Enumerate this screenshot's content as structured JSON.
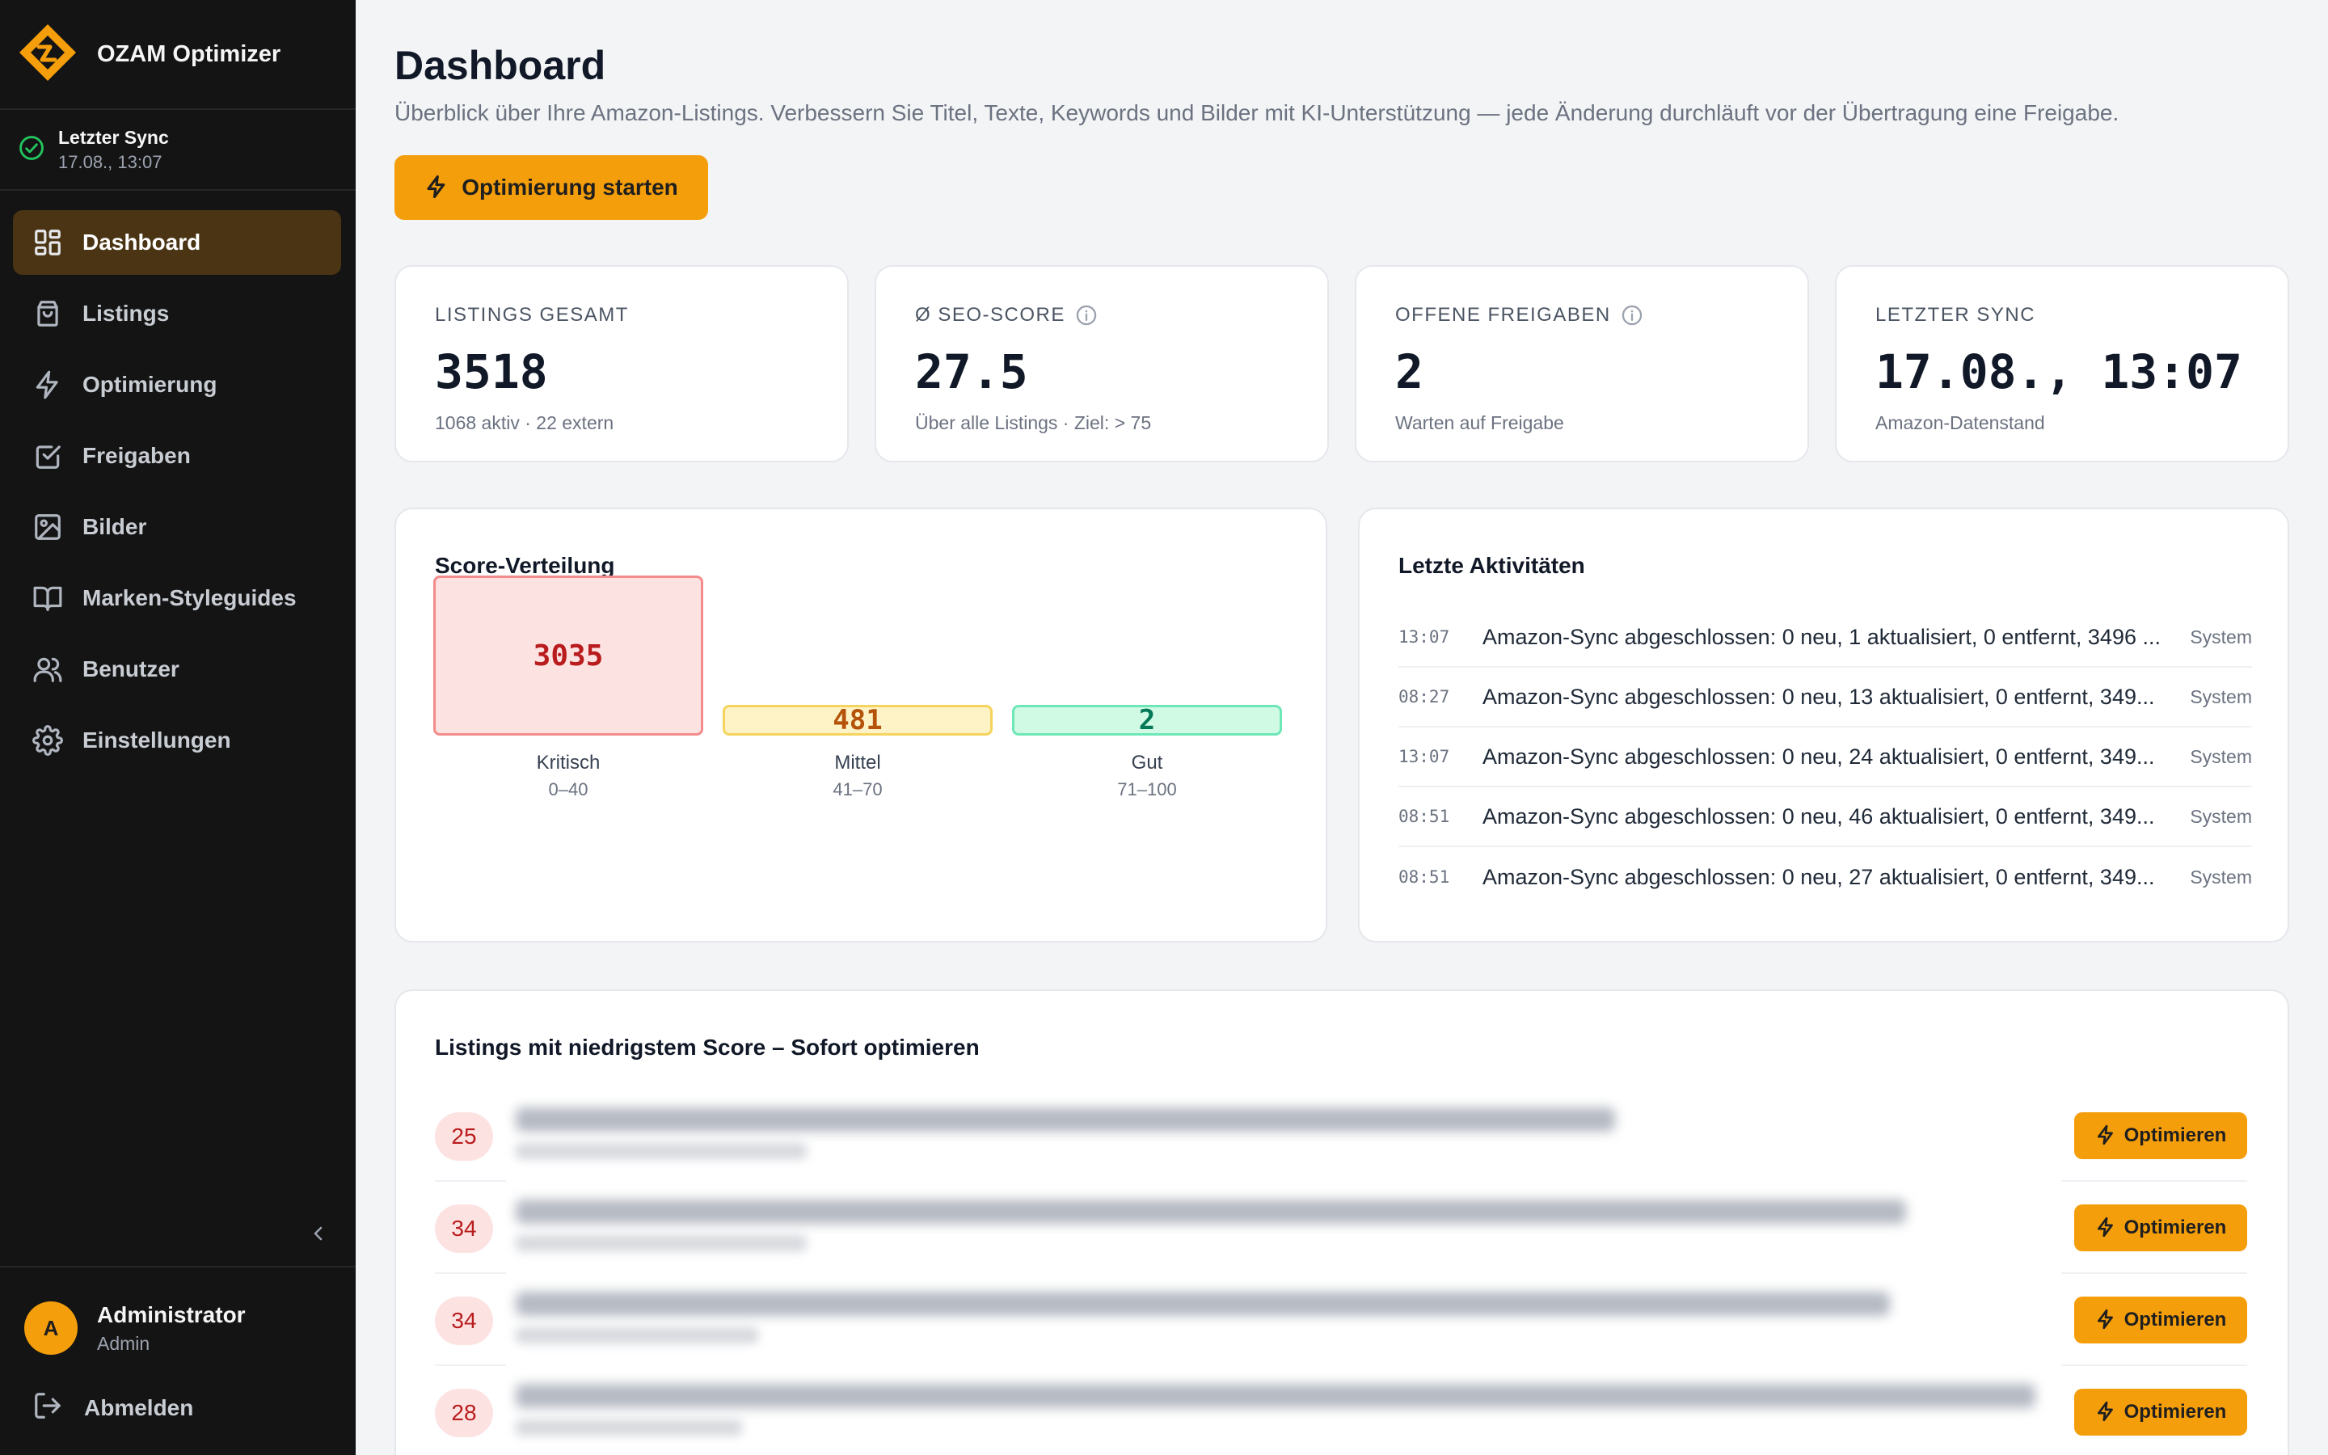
{
  "app": {
    "name": "OZAM Optimizer",
    "accent": "#f59e0b"
  },
  "sidebar": {
    "sync": {
      "title": "Letzter Sync",
      "time": "17.08., 13:07"
    },
    "items": [
      {
        "label": "Dashboard",
        "icon": "dashboard-grid-icon",
        "active": true
      },
      {
        "label": "Listings",
        "icon": "shopping-bag-icon"
      },
      {
        "label": "Optimierung",
        "icon": "lightning-icon"
      },
      {
        "label": "Freigaben",
        "icon": "checkbox-icon"
      },
      {
        "label": "Bilder",
        "icon": "image-icon"
      },
      {
        "label": "Marken-Styleguides",
        "icon": "book-icon"
      },
      {
        "label": "Benutzer",
        "icon": "users-icon"
      },
      {
        "label": "Einstellungen",
        "icon": "gear-icon"
      }
    ],
    "user": {
      "initial": "A",
      "name": "Administrator",
      "role": "Admin"
    },
    "logout_label": "Abmelden"
  },
  "header": {
    "title": "Dashboard",
    "subtitle": "Überblick über Ihre Amazon-Listings. Verbessern Sie Titel, Texte, Keywords und Bilder mit KI-Unterstützung — jede Änderung durchläuft vor der Übertragung eine Freigabe.",
    "primary_button": "Optimierung starten"
  },
  "stats": [
    {
      "label": "LISTINGS GESAMT",
      "value": "3518",
      "sub": "1068 aktiv · 22 extern"
    },
    {
      "label": "Ø SEO-SCORE",
      "value": "27.5",
      "sub": "Über alle Listings · Ziel: > 75"
    },
    {
      "label": "OFFENE FREIGABEN",
      "value": "2",
      "sub": "Warten auf Freigabe"
    },
    {
      "label": "LETZTER SYNC",
      "value": "17.08., 13:07",
      "sub": "Amazon-Datenstand"
    }
  ],
  "score_distribution": {
    "title": "Score-Verteilung",
    "buckets": [
      {
        "value": "3035",
        "label": "Kritisch",
        "range": "0–40",
        "fill": "#fde2e2",
        "border": "#f28b8b",
        "text": "#b91c1c"
      },
      {
        "value": "481",
        "label": "Mittel",
        "range": "41–70",
        "fill": "#fef3c7",
        "border": "#f5d45e",
        "text": "#b45309"
      },
      {
        "value": "2",
        "label": "Gut",
        "range": "71–100",
        "fill": "#d1fae5",
        "border": "#6ee7b7",
        "text": "#047857"
      }
    ]
  },
  "activities": {
    "title": "Letzte Aktivitäten",
    "items": [
      {
        "time": "13:07",
        "text": "Amazon-Sync abgeschlossen: 0 neu, 1 aktualisiert, 0 entfernt, 3496 ...",
        "source": "System"
      },
      {
        "time": "08:27",
        "text": "Amazon-Sync abgeschlossen: 0 neu, 13 aktualisiert, 0 entfernt, 349...",
        "source": "System"
      },
      {
        "time": "13:07",
        "text": "Amazon-Sync abgeschlossen: 0 neu, 24 aktualisiert, 0 entfernt, 349...",
        "source": "System"
      },
      {
        "time": "08:51",
        "text": "Amazon-Sync abgeschlossen: 0 neu, 46 aktualisiert, 0 entfernt, 349...",
        "source": "System"
      },
      {
        "time": "08:51",
        "text": "Amazon-Sync abgeschlossen: 0 neu, 27 aktualisiert, 0 entfernt, 349...",
        "source": "System"
      }
    ]
  },
  "low_score": {
    "title": "Listings mit niedrigstem Score – Sofort optimieren",
    "button_label": "Optimieren",
    "rows": [
      {
        "score": "25"
      },
      {
        "score": "34"
      },
      {
        "score": "34"
      },
      {
        "score": "28"
      }
    ]
  }
}
